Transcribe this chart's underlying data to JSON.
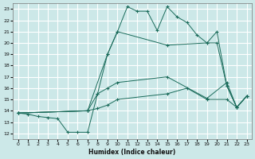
{
  "bg_color": "#cce8e8",
  "grid_color": "#ffffff",
  "line_color": "#1a6b5a",
  "xlabel": "Humidex (Indice chaleur)",
  "xlim": [
    -0.5,
    23.5
  ],
  "ylim": [
    11.5,
    23.5
  ],
  "xticks": [
    0,
    1,
    2,
    3,
    4,
    5,
    6,
    7,
    8,
    9,
    10,
    11,
    12,
    13,
    14,
    15,
    16,
    17,
    18,
    19,
    20,
    21,
    22,
    23
  ],
  "yticks": [
    12,
    13,
    14,
    15,
    16,
    17,
    18,
    19,
    20,
    21,
    22,
    23
  ],
  "line1_x": [
    0,
    1,
    2,
    3,
    4,
    5,
    6,
    7,
    8,
    9,
    10,
    11,
    12,
    13,
    14,
    15,
    16,
    17,
    18,
    19,
    20,
    21,
    22,
    23
  ],
  "line1_y": [
    13.8,
    13.7,
    13.5,
    13.4,
    13.3,
    12.1,
    12.1,
    12.1,
    15.5,
    19.0,
    21.0,
    23.2,
    22.8,
    22.8,
    21.1,
    23.2,
    22.3,
    21.8,
    20.7,
    20.0,
    21.0,
    16.2,
    14.3,
    15.3
  ],
  "line2_x": [
    0,
    7,
    9,
    10,
    15,
    19,
    20,
    21,
    22,
    23
  ],
  "line2_y": [
    13.8,
    14.0,
    19.0,
    21.0,
    19.8,
    20.0,
    20.0,
    16.2,
    14.3,
    15.3
  ],
  "line3_x": [
    0,
    7,
    8,
    9,
    10,
    15,
    19,
    21,
    22,
    23
  ],
  "line3_y": [
    13.8,
    14.0,
    15.5,
    16.0,
    16.5,
    17.0,
    15.1,
    16.5,
    14.3,
    15.3
  ],
  "line4_x": [
    0,
    7,
    8,
    9,
    10,
    15,
    17,
    19,
    21,
    22,
    23
  ],
  "line4_y": [
    13.8,
    14.0,
    14.2,
    14.5,
    15.0,
    15.5,
    16.0,
    15.0,
    15.0,
    14.3,
    15.3
  ]
}
